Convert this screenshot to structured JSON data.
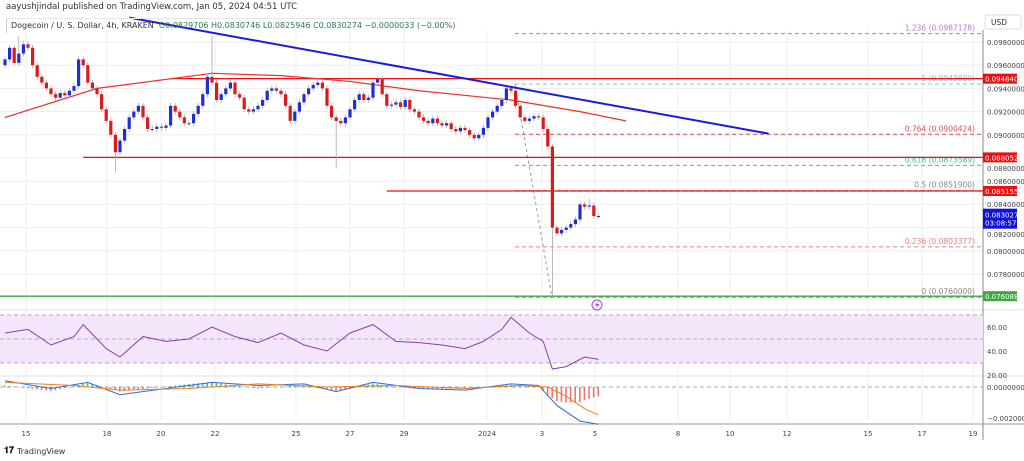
{
  "header": {
    "published": "aayushjindal published on TradingView.com, Jan 05, 2024 04:51 UTC",
    "symbol": "Dogecoin / U. S. Dollar, 4h, KRAKEN",
    "ohlc": "O0.0829706 H0.0830746 L0.0825946 C0.0830274 −0.0000033 (−0.00%)"
  },
  "footer": {
    "brand": "TradingView",
    "logo_icon": "tradingview-logo-icon"
  },
  "colors": {
    "up": "#1f2fd6",
    "down": "#e01818",
    "ma": "#ee3030",
    "trendline": "#1a1ae0",
    "level": "#ee1010",
    "support_green": "#3aa83a",
    "rsi": "#8a3fb0",
    "rsi_band": "#f3e6fb",
    "macd": "#2a6ee0",
    "signal": "#f08020"
  },
  "chart_data": {
    "type": "candlestick",
    "timeframe": "4h",
    "currency": "USD",
    "price_ticks": [
      "0.0980000",
      "0.0960000",
      "0.0940000",
      "0.0920000",
      "0.0900000",
      "0.0880000",
      "0.0860000",
      "0.0840000",
      "0.0820000",
      "0.0800000",
      "0.0780000"
    ],
    "price_range": [
      0.0748,
      0.1003
    ],
    "time_labels": [
      "15",
      "18",
      "20",
      "22",
      "25",
      "27",
      "29",
      "2024",
      "3",
      "5",
      "8",
      "10",
      "12",
      "15",
      "17",
      "19"
    ],
    "closes": [
      0.0965,
      0.0975,
      0.0962,
      0.097,
      0.0978,
      0.0975,
      0.096,
      0.095,
      0.0945,
      0.094,
      0.0935,
      0.0932,
      0.0936,
      0.0934,
      0.0938,
      0.0942,
      0.0965,
      0.096,
      0.0945,
      0.094,
      0.0935,
      0.0922,
      0.0912,
      0.09,
      0.0885,
      0.0895,
      0.0905,
      0.0915,
      0.092,
      0.0925,
      0.0915,
      0.0905,
      0.0905,
      0.0907,
      0.0906,
      0.0908,
      0.0925,
      0.092,
      0.0915,
      0.091,
      0.091,
      0.0918,
      0.0925,
      0.0935,
      0.095,
      0.0945,
      0.093,
      0.0935,
      0.094,
      0.0945,
      0.0935,
      0.0932,
      0.0922,
      0.092,
      0.0922,
      0.0925,
      0.093,
      0.0938,
      0.094,
      0.0938,
      0.0935,
      0.0925,
      0.0912,
      0.092,
      0.0928,
      0.0935,
      0.094,
      0.0943,
      0.0945,
      0.094,
      0.0925,
      0.0915,
      0.0912,
      0.091,
      0.0915,
      0.0922,
      0.093,
      0.0935,
      0.093,
      0.0932,
      0.0945,
      0.0948,
      0.0935,
      0.0925,
      0.0926,
      0.0928,
      0.0924,
      0.093,
      0.0922,
      0.092,
      0.0915,
      0.0912,
      0.091,
      0.0914,
      0.091,
      0.0908,
      0.091,
      0.0905,
      0.0903,
      0.0906,
      0.0904,
      0.09,
      0.0897,
      0.09,
      0.0906,
      0.0915,
      0.092,
      0.0925,
      0.093,
      0.094,
      0.0938,
      0.0925,
      0.0915,
      0.0912,
      0.0914,
      0.0916,
      0.0915,
      0.0905,
      0.089,
      0.082,
      0.0815,
      0.0818,
      0.082,
      0.0823,
      0.0827,
      0.084,
      0.0838,
      0.0839,
      0.083,
      0.083
    ],
    "wick_extremes": [
      {
        "i": 3,
        "high": 0.0985
      },
      {
        "i": 24,
        "low": 0.0868
      },
      {
        "i": 45,
        "high": 0.0986
      },
      {
        "i": 72,
        "low": 0.0871
      },
      {
        "i": 119,
        "low": 0.076
      },
      {
        "i": 127,
        "high": 0.0845
      }
    ],
    "moving_average": [
      [
        0,
        0.0915
      ],
      [
        20,
        0.094
      ],
      [
        45,
        0.0953
      ],
      [
        60,
        0.0951
      ],
      [
        75,
        0.0946
      ],
      [
        90,
        0.0938
      ],
      [
        110,
        0.093
      ],
      [
        125,
        0.092
      ],
      [
        135,
        0.0912
      ]
    ],
    "horizontal_levels": [
      {
        "price": 0.0948409,
        "label": "0.0948409",
        "color": "#ee1010",
        "from_index": 36
      },
      {
        "price": 0.0880527,
        "label": "0.0880527",
        "color": "#ee1010",
        "from_index": 17
      },
      {
        "price": 0.0851556,
        "label": "0.0851556",
        "color": "#ee1010",
        "from_index": 83
      },
      {
        "price": 0.0760887,
        "label": "0.0760887",
        "color": "#3aa83a",
        "from_index": 0
      }
    ],
    "trendline": {
      "from": [
        27,
        0.1001
      ],
      "to": [
        166,
        0.0901
      ]
    },
    "last_price": {
      "value": "0.0830274",
      "countdown": "03:08:57"
    },
    "fibonacci": [
      {
        "ratio": "1.236",
        "price": "0.0987178",
        "color": "#b07ad8"
      },
      {
        "ratio": "1",
        "price": "0.0943800",
        "color": "#7cc4ea"
      },
      {
        "ratio": "0.764",
        "price": "0.0900424",
        "color": "#e05050"
      },
      {
        "ratio": "0.618",
        "price": "0.0873589",
        "color": "#3cbf9a"
      },
      {
        "ratio": "0.5",
        "price": "0.0851900",
        "color": "#888888"
      },
      {
        "ratio": "0.236",
        "price": "0.0803377",
        "color": "#f08080"
      },
      {
        "ratio": "0",
        "price": "0.0760000",
        "color": "#888888"
      }
    ],
    "rsi": {
      "ticks": [
        "60.00",
        "40.00",
        "20.00"
      ],
      "band": [
        30,
        70
      ],
      "values": [
        [
          0,
          55
        ],
        [
          5,
          58
        ],
        [
          10,
          45
        ],
        [
          15,
          52
        ],
        [
          17,
          62
        ],
        [
          22,
          42
        ],
        [
          25,
          35
        ],
        [
          30,
          52
        ],
        [
          35,
          48
        ],
        [
          40,
          50
        ],
        [
          45,
          60
        ],
        [
          50,
          52
        ],
        [
          55,
          47
        ],
        [
          60,
          55
        ],
        [
          65,
          45
        ],
        [
          70,
          40
        ],
        [
          75,
          55
        ],
        [
          80,
          62
        ],
        [
          85,
          48
        ],
        [
          90,
          47
        ],
        [
          95,
          45
        ],
        [
          100,
          42
        ],
        [
          104,
          48
        ],
        [
          108,
          58
        ],
        [
          110,
          68
        ],
        [
          114,
          55
        ],
        [
          117,
          48
        ],
        [
          119,
          25
        ],
        [
          122,
          27
        ],
        [
          126,
          35
        ],
        [
          129,
          33
        ]
      ]
    },
    "macd": {
      "ticks": [
        "0.0000000",
        "−0.0020000"
      ],
      "macd": [
        [
          0,
          0.0004
        ],
        [
          10,
          -0.0001
        ],
        [
          18,
          0.0003
        ],
        [
          25,
          -0.0005
        ],
        [
          35,
          -0.0001
        ],
        [
          45,
          0.0003
        ],
        [
          55,
          0.0001
        ],
        [
          65,
          0.0002
        ],
        [
          72,
          -0.0003
        ],
        [
          80,
          0.0003
        ],
        [
          90,
          -0.0001
        ],
        [
          100,
          -0.0002
        ],
        [
          110,
          0.0002
        ],
        [
          116,
          0.0001
        ],
        [
          120,
          -0.0012
        ],
        [
          125,
          -0.0022
        ],
        [
          129,
          -0.0024
        ]
      ],
      "signal": [
        [
          0,
          0.0003
        ],
        [
          15,
          0.0001
        ],
        [
          25,
          -0.0002
        ],
        [
          40,
          -0.0001
        ],
        [
          55,
          0.0002
        ],
        [
          70,
          0.0
        ],
        [
          85,
          0.0001
        ],
        [
          100,
          -0.0001
        ],
        [
          112,
          0.0001
        ],
        [
          118,
          0.0
        ],
        [
          122,
          -0.0006
        ],
        [
          126,
          -0.0014
        ],
        [
          129,
          -0.0018
        ]
      ]
    }
  }
}
